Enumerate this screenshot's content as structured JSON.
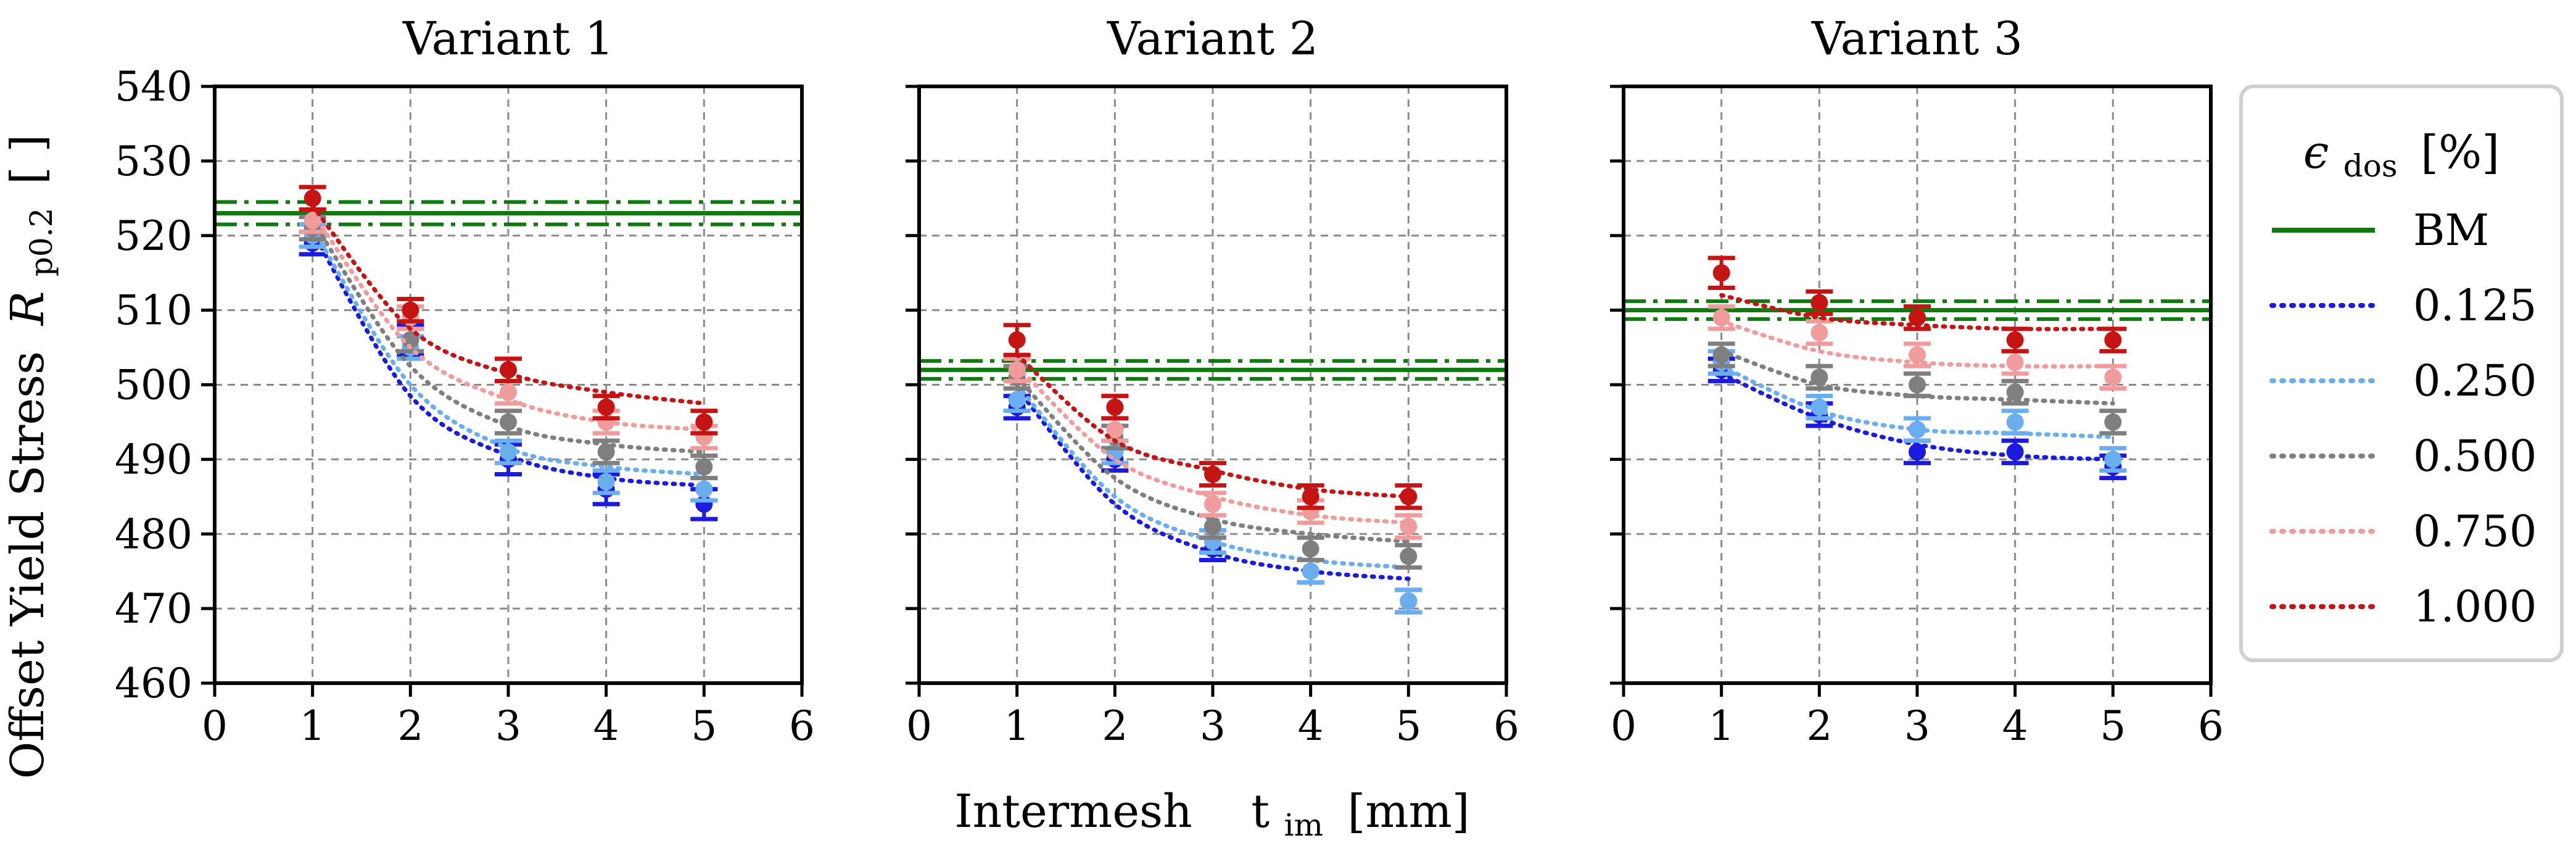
{
  "chart_data": {
    "type": "scatter",
    "title": "",
    "xlabel": "Intermesh   t_im [mm]",
    "xlabel_parts": {
      "main": "Intermesh",
      "sym": "t",
      "sub": "im",
      "unit": "[mm]"
    },
    "ylabel": "Offset Yield Stress R_p0.2 [ ]",
    "ylabel_parts": {
      "main": "Offset Yield Stress",
      "sym": "R",
      "sub": "p0.2",
      "unit": "[ ]"
    },
    "xlim": [
      0,
      6
    ],
    "ylim": [
      460,
      540
    ],
    "xticks": [
      "0",
      "1",
      "2",
      "3",
      "4",
      "5",
      "6"
    ],
    "yticks": [
      "460",
      "470",
      "480",
      "490",
      "500",
      "510",
      "520",
      "530",
      "540"
    ],
    "grid": true,
    "legend": {
      "position": "right",
      "title": "ε_dos [%]",
      "title_parts": {
        "sym": "ϵ",
        "sub": "dos",
        "unit": "[%]"
      },
      "entries": [
        {
          "label": "BM",
          "color": "#107a10",
          "style": "solid"
        },
        {
          "label": "0.125",
          "color": "#1a1ae0",
          "style": "dotted"
        },
        {
          "label": "0.250",
          "color": "#6aaef0",
          "style": "dotted"
        },
        {
          "label": "0.500",
          "color": "#7f7f7f",
          "style": "dotted"
        },
        {
          "label": "0.750",
          "color": "#f09c9c",
          "style": "dotted"
        },
        {
          "label": "1.000",
          "color": "#c41414",
          "style": "dotted"
        }
      ]
    },
    "panels": [
      {
        "title": "Variant 1",
        "bm": {
          "mean": 523,
          "upper": 524.5,
          "lower": 521.5
        },
        "x": [
          1,
          2,
          3,
          4,
          5
        ],
        "series": [
          {
            "name": "0.125",
            "color": "#1a1ae0",
            "values": [
              519,
              506,
              490,
              486,
              484
            ],
            "err": [
              1.5,
              2,
              2,
              2,
              2
            ],
            "fit": [
              520.5,
              498.5,
              490.5,
              487.5,
              486.5
            ]
          },
          {
            "name": "0.250",
            "color": "#6aaef0",
            "values": [
              520,
              505,
              491,
              487,
              486
            ],
            "err": [
              1.5,
              1.5,
              1.5,
              1.5,
              1.5
            ],
            "fit": [
              521,
              500,
              491.5,
              489,
              488
            ]
          },
          {
            "name": "0.500",
            "color": "#7f7f7f",
            "values": [
              521,
              506,
              495,
              491,
              489
            ],
            "err": [
              1.5,
              1.5,
              1.5,
              1.5,
              1.5
            ],
            "fit": [
              522,
              502.5,
              494.5,
              492,
              491
            ]
          },
          {
            "name": "0.750",
            "color": "#f09c9c",
            "values": [
              522,
              509,
              499,
              495,
              493
            ],
            "err": [
              1.5,
              1.5,
              1.5,
              1.5,
              1.5
            ],
            "fit": [
              523,
              505,
              498,
              495,
              494
            ]
          },
          {
            "name": "1.000",
            "color": "#c41414",
            "values": [
              525,
              510,
              502,
              497,
              495
            ],
            "err": [
              1.5,
              1.5,
              1.5,
              1.5,
              1.5
            ],
            "fit": [
              524,
              507.5,
              501.5,
              499,
              497.5
            ]
          }
        ]
      },
      {
        "title": "Variant 2",
        "bm": {
          "mean": 502,
          "upper": 503.2,
          "lower": 500.8
        },
        "x": [
          1,
          2,
          3,
          4,
          5
        ],
        "series": [
          {
            "name": "0.125",
            "color": "#1a1ae0",
            "values": [
              497,
              490,
              478,
              475,
              471
            ],
            "err": [
              1.5,
              1.5,
              1.5,
              1.5,
              1.5
            ],
            "fit": [
              499.5,
              484,
              477.5,
              475,
              474
            ]
          },
          {
            "name": "0.250",
            "color": "#6aaef0",
            "values": [
              498,
              491,
              479,
              475,
              471
            ],
            "err": [
              1.5,
              1.5,
              1.5,
              1.5,
              1.5
            ],
            "fit": [
              500,
              485,
              479,
              476.5,
              475.5
            ]
          },
          {
            "name": "0.500",
            "color": "#7f7f7f",
            "values": [
              501,
              493,
              481,
              478,
              477
            ],
            "err": [
              1.5,
              1.5,
              1.5,
              1.5,
              1.5
            ],
            "fit": [
              501,
              487.5,
              482,
              480,
              479
            ]
          },
          {
            "name": "0.750",
            "color": "#f09c9c",
            "values": [
              502,
              494,
              484,
              483,
              481
            ],
            "err": [
              1.5,
              1.5,
              1.5,
              1.5,
              1.5
            ],
            "fit": [
              502.5,
              490,
              485,
              482.5,
              481.5
            ]
          },
          {
            "name": "1.000",
            "color": "#c41414",
            "values": [
              506,
              497,
              488,
              485,
              485
            ],
            "err": [
              2,
              1.5,
              1.5,
              1.5,
              1.5
            ],
            "fit": [
              504,
              492.5,
              488.5,
              486,
              485
            ]
          }
        ]
      },
      {
        "title": "Variant 3",
        "bm": {
          "mean": 510,
          "upper": 511.2,
          "lower": 508.8
        },
        "x": [
          1,
          2,
          3,
          4,
          5
        ],
        "series": [
          {
            "name": "0.125",
            "color": "#1a1ae0",
            "values": [
              502,
              496,
              491,
              491,
              489
            ],
            "err": [
              1.5,
              1.5,
              1.5,
              1.5,
              1.5
            ],
            "fit": [
              501.5,
              495.5,
              492,
              490.5,
              490
            ]
          },
          {
            "name": "0.250",
            "color": "#6aaef0",
            "values": [
              503,
              497,
              494,
              495,
              490
            ],
            "err": [
              1.5,
              1.5,
              1.5,
              1.5,
              1.5
            ],
            "fit": [
              502.5,
              496.5,
              494,
              493.5,
              493
            ]
          },
          {
            "name": "0.500",
            "color": "#7f7f7f",
            "values": [
              504,
              501,
              500,
              499,
              495
            ],
            "err": [
              1.5,
              1.5,
              1.5,
              1.5,
              1.5
            ],
            "fit": [
              504.5,
              500,
              498.5,
              498,
              497.5
            ]
          },
          {
            "name": "0.750",
            "color": "#f09c9c",
            "values": [
              509,
              507,
              504,
              503,
              501
            ],
            "err": [
              1.5,
              1.5,
              1.5,
              1.5,
              1.5
            ],
            "fit": [
              508.5,
              504.5,
              503,
              502.5,
              502.5
            ]
          },
          {
            "name": "1.000",
            "color": "#c41414",
            "values": [
              515,
              511,
              509,
              506,
              506
            ],
            "err": [
              2,
              1.5,
              1.5,
              1.5,
              1.5
            ],
            "fit": [
              512,
              509,
              508,
              507.5,
              507.5
            ]
          }
        ]
      }
    ]
  }
}
